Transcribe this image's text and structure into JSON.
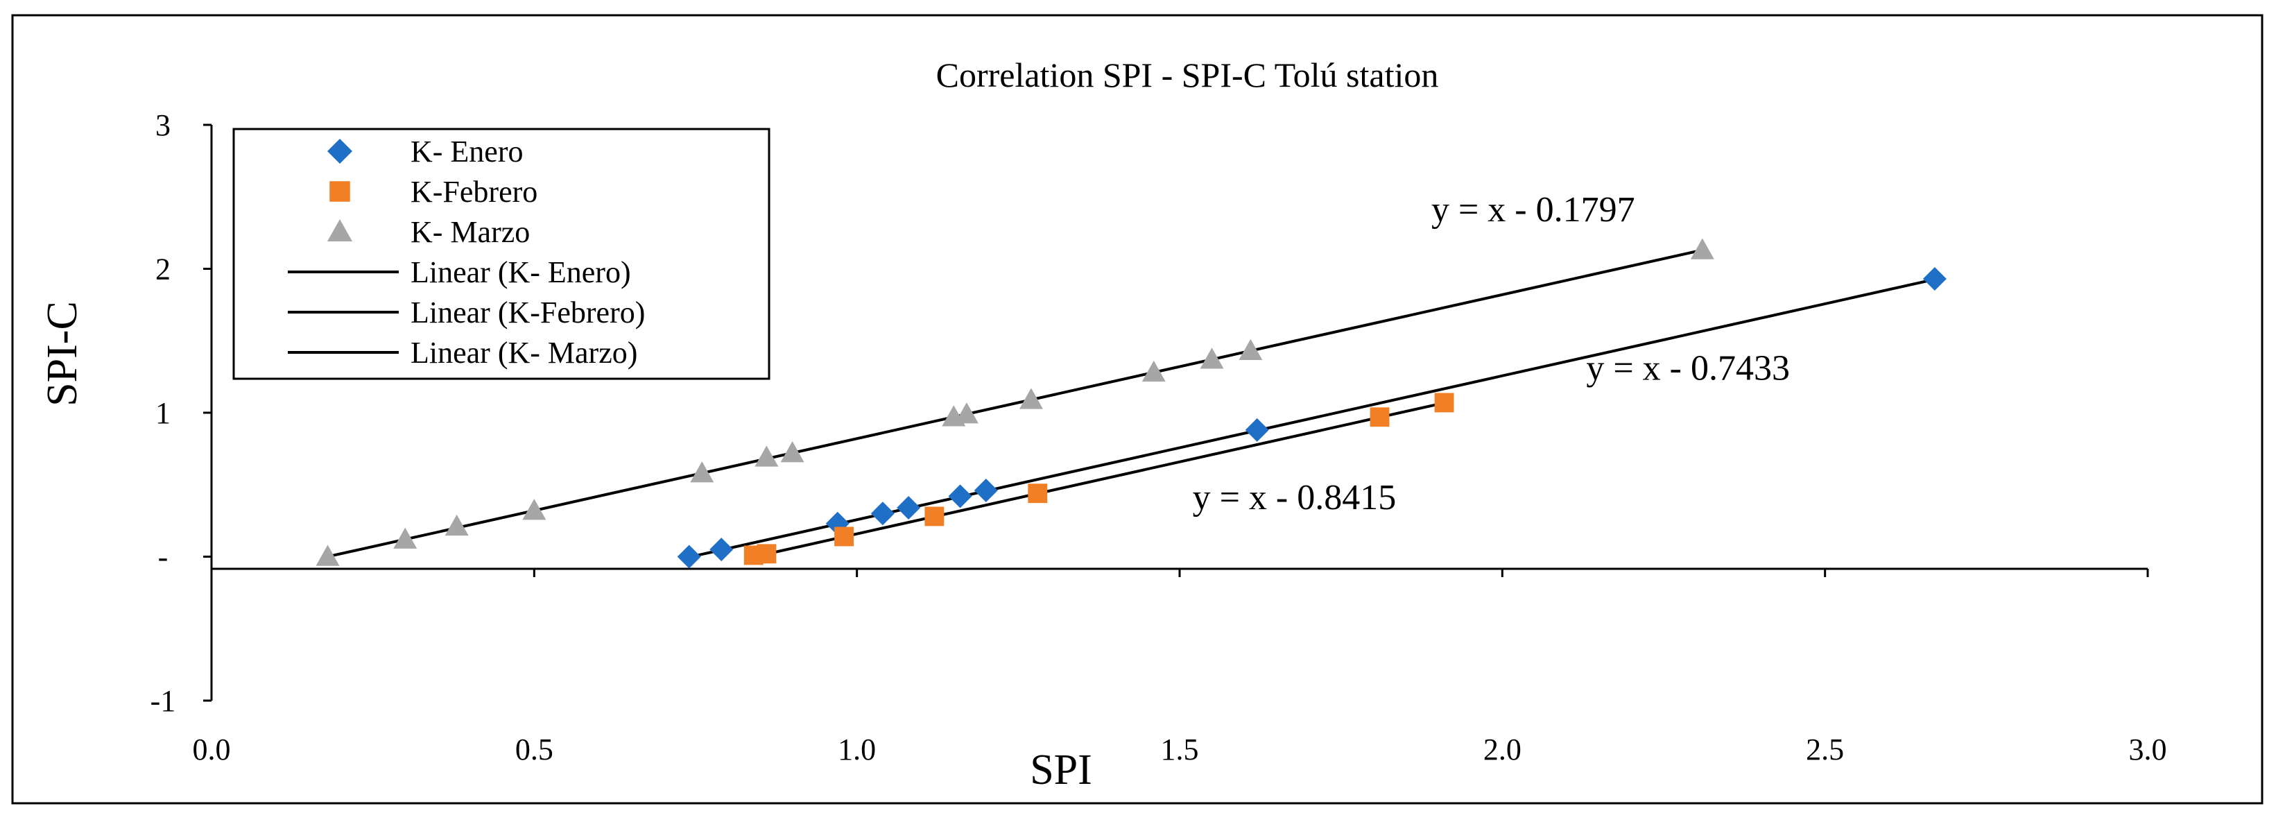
{
  "chart_data": {
    "type": "scatter",
    "title": "Correlation SPI - SPI-C Tolú station",
    "xlabel": "SPI",
    "ylabel": "SPI-C",
    "xlim": [
      0.0,
      3.0
    ],
    "ylim": [
      -1,
      3
    ],
    "x_ticks": [
      "0.0",
      "0.5",
      "1.0",
      "1.5",
      "2.0",
      "2.5",
      "3.0"
    ],
    "y_ticks": [
      "-1",
      "-",
      "1",
      "2",
      "3"
    ],
    "legend_position": "top-left",
    "series": [
      {
        "name": "K- Enero",
        "marker": "diamond",
        "color": "#1f6fc6",
        "x": [
          0.74,
          0.79,
          0.97,
          1.04,
          1.08,
          1.16,
          1.2,
          1.62,
          2.67
        ],
        "y": [
          0.0,
          0.05,
          0.23,
          0.3,
          0.34,
          0.42,
          0.46,
          0.88,
          1.93
        ]
      },
      {
        "name": "K-Febrero",
        "marker": "square",
        "color": "#f07f25",
        "x": [
          0.84,
          0.86,
          0.98,
          1.12,
          1.28,
          1.81,
          1.91
        ],
        "y": [
          0.01,
          0.02,
          0.14,
          0.28,
          0.44,
          0.97,
          1.07
        ]
      },
      {
        "name": "K- Marzo",
        "marker": "triangle",
        "color": "#a6a6a6",
        "x": [
          0.18,
          0.3,
          0.38,
          0.5,
          0.76,
          0.86,
          0.9,
          1.15,
          1.17,
          1.27,
          1.46,
          1.55,
          1.61,
          2.31
        ],
        "y": [
          0.0,
          0.12,
          0.21,
          0.32,
          0.58,
          0.69,
          0.72,
          0.97,
          0.99,
          1.09,
          1.28,
          1.37,
          1.43,
          2.13
        ]
      }
    ],
    "trendlines": [
      {
        "name": "Linear (K- Enero)",
        "slope": 1,
        "intercept": -0.7433,
        "x_range": [
          0.74,
          2.67
        ],
        "equation": "y = x - 0.7433",
        "label_at": [
          2.13,
          1.23
        ]
      },
      {
        "name": "Linear (K-Febrero)",
        "slope": 1,
        "intercept": -0.8415,
        "x_range": [
          0.84,
          1.91
        ],
        "equation": "y = x - 0.8415",
        "label_at": [
          1.52,
          0.33
        ]
      },
      {
        "name": "Linear (K- Marzo)",
        "slope": 1,
        "intercept": -0.1797,
        "x_range": [
          0.18,
          2.31
        ],
        "equation": "y = x - 0.1797",
        "label_at": [
          1.89,
          2.33
        ]
      }
    ]
  }
}
